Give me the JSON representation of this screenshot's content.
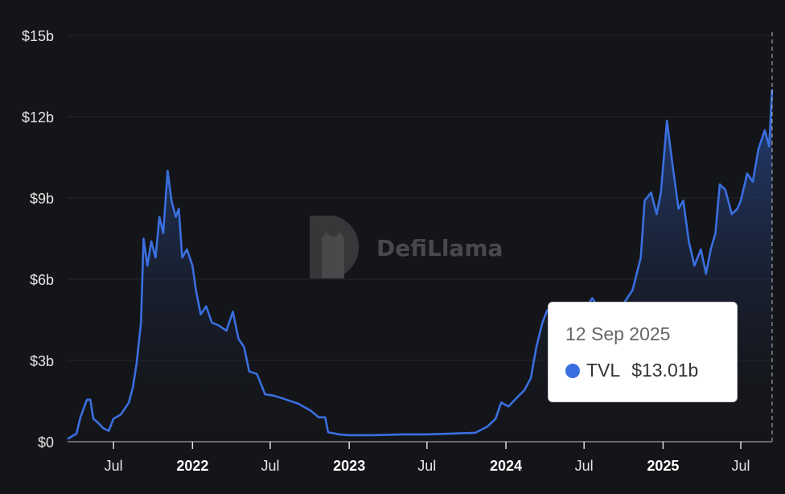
{
  "chart_data": {
    "type": "area",
    "title": "",
    "xlabel": "",
    "ylabel": "",
    "ylim": [
      0,
      15
    ],
    "xlim": [
      "2021-03-16",
      "2025-09-12"
    ],
    "grid": true,
    "y_ticks": [
      {
        "v": 0,
        "label": "$0"
      },
      {
        "v": 3,
        "label": "$3b"
      },
      {
        "v": 6,
        "label": "$6b"
      },
      {
        "v": 9,
        "label": "$9b"
      },
      {
        "v": 12,
        "label": "$12b"
      },
      {
        "v": 15,
        "label": "$15b"
      }
    ],
    "x_ticks": [
      {
        "date": "2021-07-01",
        "label": "Jul",
        "bold": false
      },
      {
        "date": "2022-01-01",
        "label": "2022",
        "bold": true
      },
      {
        "date": "2022-07-01",
        "label": "Jul",
        "bold": false
      },
      {
        "date": "2023-01-01",
        "label": "2023",
        "bold": true
      },
      {
        "date": "2023-07-01",
        "label": "Jul",
        "bold": false
      },
      {
        "date": "2024-01-01",
        "label": "2024",
        "bold": true
      },
      {
        "date": "2024-07-01",
        "label": "Jul",
        "bold": false
      },
      {
        "date": "2025-01-01",
        "label": "2025",
        "bold": true
      },
      {
        "date": "2025-07-01",
        "label": "Jul",
        "bold": false
      }
    ],
    "series": [
      {
        "name": "TVL",
        "color": "#3a6fe0",
        "unit": "billion USD",
        "points": [
          [
            "2021-03-16",
            0.1
          ],
          [
            "2021-04-06",
            0.3
          ],
          [
            "2021-04-15",
            0.9
          ],
          [
            "2021-04-30",
            1.55
          ],
          [
            "2021-05-08",
            1.55
          ],
          [
            "2021-05-15",
            0.85
          ],
          [
            "2021-05-26",
            0.7
          ],
          [
            "2021-06-07",
            0.5
          ],
          [
            "2021-06-20",
            0.4
          ],
          [
            "2021-07-01",
            0.85
          ],
          [
            "2021-07-18",
            1.0
          ],
          [
            "2021-08-06",
            1.45
          ],
          [
            "2021-08-15",
            2.0
          ],
          [
            "2021-08-24",
            2.9
          ],
          [
            "2021-09-03",
            4.4
          ],
          [
            "2021-09-09",
            7.5
          ],
          [
            "2021-09-18",
            6.5
          ],
          [
            "2021-09-27",
            7.4
          ],
          [
            "2021-10-07",
            6.8
          ],
          [
            "2021-10-16",
            8.3
          ],
          [
            "2021-10-25",
            7.7
          ],
          [
            "2021-11-04",
            10.0
          ],
          [
            "2021-11-13",
            8.9
          ],
          [
            "2021-11-23",
            8.3
          ],
          [
            "2021-11-30",
            8.6
          ],
          [
            "2021-12-08",
            6.8
          ],
          [
            "2021-12-19",
            7.1
          ],
          [
            "2022-01-01",
            6.5
          ],
          [
            "2022-01-09",
            5.6
          ],
          [
            "2022-01-20",
            4.7
          ],
          [
            "2022-02-02",
            5.0
          ],
          [
            "2022-02-15",
            4.4
          ],
          [
            "2022-03-02",
            4.3
          ],
          [
            "2022-03-21",
            4.1
          ],
          [
            "2022-04-05",
            4.8
          ],
          [
            "2022-04-18",
            3.8
          ],
          [
            "2022-05-01",
            3.5
          ],
          [
            "2022-05-13",
            2.6
          ],
          [
            "2022-05-31",
            2.5
          ],
          [
            "2022-06-19",
            1.75
          ],
          [
            "2022-07-10",
            1.7
          ],
          [
            "2022-08-08",
            1.55
          ],
          [
            "2022-09-05",
            1.4
          ],
          [
            "2022-10-03",
            1.15
          ],
          [
            "2022-10-22",
            0.9
          ],
          [
            "2022-11-06",
            0.9
          ],
          [
            "2022-11-13",
            0.35
          ],
          [
            "2022-12-08",
            0.27
          ],
          [
            "2023-01-01",
            0.24
          ],
          [
            "2023-02-23",
            0.24
          ],
          [
            "2023-05-09",
            0.27
          ],
          [
            "2023-07-01",
            0.27
          ],
          [
            "2023-08-26",
            0.3
          ],
          [
            "2023-10-22",
            0.33
          ],
          [
            "2023-11-19",
            0.56
          ],
          [
            "2023-12-08",
            0.85
          ],
          [
            "2023-12-21",
            1.45
          ],
          [
            "2024-01-07",
            1.3
          ],
          [
            "2024-01-25",
            1.6
          ],
          [
            "2024-02-13",
            1.9
          ],
          [
            "2024-02-28",
            2.35
          ],
          [
            "2024-03-12",
            3.5
          ],
          [
            "2024-03-26",
            4.4
          ],
          [
            "2024-04-06",
            4.85
          ],
          [
            "2024-04-19",
            4.55
          ],
          [
            "2024-05-17",
            4.85
          ],
          [
            "2024-06-09",
            4.7
          ],
          [
            "2024-07-01",
            4.85
          ],
          [
            "2024-07-20",
            5.3
          ],
          [
            "2024-08-08",
            4.85
          ],
          [
            "2024-09-05",
            5.0
          ],
          [
            "2024-10-03",
            5.15
          ],
          [
            "2024-10-22",
            5.6
          ],
          [
            "2024-11-10",
            6.8
          ],
          [
            "2024-11-19",
            8.9
          ],
          [
            "2024-12-04",
            9.2
          ],
          [
            "2024-12-17",
            8.4
          ],
          [
            "2024-12-27",
            9.2
          ],
          [
            "2025-01-10",
            11.85
          ],
          [
            "2025-01-24",
            10.1
          ],
          [
            "2025-02-06",
            8.6
          ],
          [
            "2025-02-17",
            8.9
          ],
          [
            "2025-03-02",
            7.4
          ],
          [
            "2025-03-15",
            6.5
          ],
          [
            "2025-03-30",
            7.1
          ],
          [
            "2025-04-11",
            6.2
          ],
          [
            "2025-04-22",
            7.1
          ],
          [
            "2025-05-03",
            7.7
          ],
          [
            "2025-05-13",
            9.5
          ],
          [
            "2025-05-26",
            9.3
          ],
          [
            "2025-06-10",
            8.4
          ],
          [
            "2025-06-23",
            8.6
          ],
          [
            "2025-07-01",
            8.9
          ],
          [
            "2025-07-16",
            9.9
          ],
          [
            "2025-07-29",
            9.6
          ],
          [
            "2025-08-11",
            10.8
          ],
          [
            "2025-08-26",
            11.5
          ],
          [
            "2025-09-05",
            10.9
          ],
          [
            "2025-09-12",
            13.01
          ]
        ]
      }
    ],
    "hover_marker": "2025-09-12",
    "watermark": "DefiLlama"
  },
  "tooltip": {
    "date": "12 Sep 2025",
    "series_label": "TVL",
    "value": "$13.01b",
    "dot_color": "#3a6fe0"
  }
}
